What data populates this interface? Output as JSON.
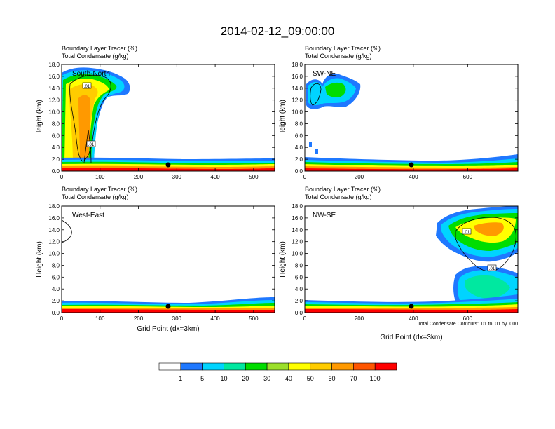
{
  "figure": {
    "title": "2014-02-12_09:00:00",
    "colorbar": {
      "colors": [
        "#ffffff",
        "#1f78ff",
        "#00d4ff",
        "#00e8a0",
        "#00dd00",
        "#9bdf2a",
        "#ffff00",
        "#ffcc00",
        "#ff9900",
        "#ff5500",
        "#ff0000"
      ],
      "labels": [
        "1",
        "5",
        "10",
        "20",
        "30",
        "40",
        "50",
        "60",
        "70",
        "100"
      ]
    },
    "contour_note": "Total Condensate Contours: .01 to .01 by .000"
  },
  "chart_data": [
    {
      "type": "heatmap",
      "panel_label": "South-North",
      "title_line1": "Boundary Layer Tracer   (%)",
      "title_line2": "Total Condensate   (g/kg)",
      "ylabel": "Height (km)",
      "xlabel": "",
      "xlim": [
        0,
        555
      ],
      "ylim": [
        0,
        18
      ],
      "xticks": [
        0,
        100,
        200,
        300,
        400,
        500
      ],
      "yticks": [
        "0.0",
        "2.0",
        "4.0",
        "6.0",
        "8.0",
        "10.0",
        "12.0",
        "14.0",
        "16.0",
        "18.0"
      ],
      "contour_labels": [
        ".01",
        ".01"
      ],
      "marker_x": 278,
      "marker_y": 1.0
    },
    {
      "type": "heatmap",
      "panel_label": "SW-NE",
      "title_line1": "Boundary Layer Tracer   (%)",
      "title_line2": "Total Condensate   (g/kg)",
      "ylabel": "Height (km)",
      "xlabel": "",
      "xlim": [
        0,
        785
      ],
      "ylim": [
        0,
        18
      ],
      "xticks": [
        0,
        200,
        400,
        600
      ],
      "yticks": [
        "0.0",
        "2.0",
        "4.0",
        "6.0",
        "8.0",
        "10.0",
        "12.0",
        "14.0",
        "16.0",
        "18.0"
      ],
      "contour_labels": [],
      "marker_x": 393,
      "marker_y": 1.0
    },
    {
      "type": "heatmap",
      "panel_label": "West-East",
      "title_line1": "Boundary Layer Tracer   (%)",
      "title_line2": "Total Condensate   (g/kg)",
      "ylabel": "Height (km)",
      "xlabel": "Grid Point (dx=3km)",
      "xlim": [
        0,
        555
      ],
      "ylim": [
        0,
        18
      ],
      "xticks": [
        0,
        100,
        200,
        300,
        400,
        500
      ],
      "yticks": [
        "0.0",
        "2.0",
        "4.0",
        "6.0",
        "8.0",
        "10.0",
        "12.0",
        "14.0",
        "16.0",
        "18.0"
      ],
      "contour_labels": [],
      "marker_x": 278,
      "marker_y": 1.0
    },
    {
      "type": "heatmap",
      "panel_label": "NW-SE",
      "title_line1": "Boundary Layer Tracer   (%)",
      "title_line2": "Total Condensate   (g/kg)",
      "ylabel": "Height (km)",
      "xlabel": "Grid Point (dx=3km)",
      "xlim": [
        0,
        785
      ],
      "ylim": [
        0,
        18
      ],
      "xticks": [
        0,
        200,
        400,
        600
      ],
      "yticks": [
        "0.0",
        "2.0",
        "4.0",
        "6.0",
        "8.0",
        "10.0",
        "12.0",
        "14.0",
        "16.0",
        "18.0"
      ],
      "contour_labels": [
        ".01",
        ".01"
      ],
      "marker_x": 393,
      "marker_y": 1.0
    }
  ]
}
